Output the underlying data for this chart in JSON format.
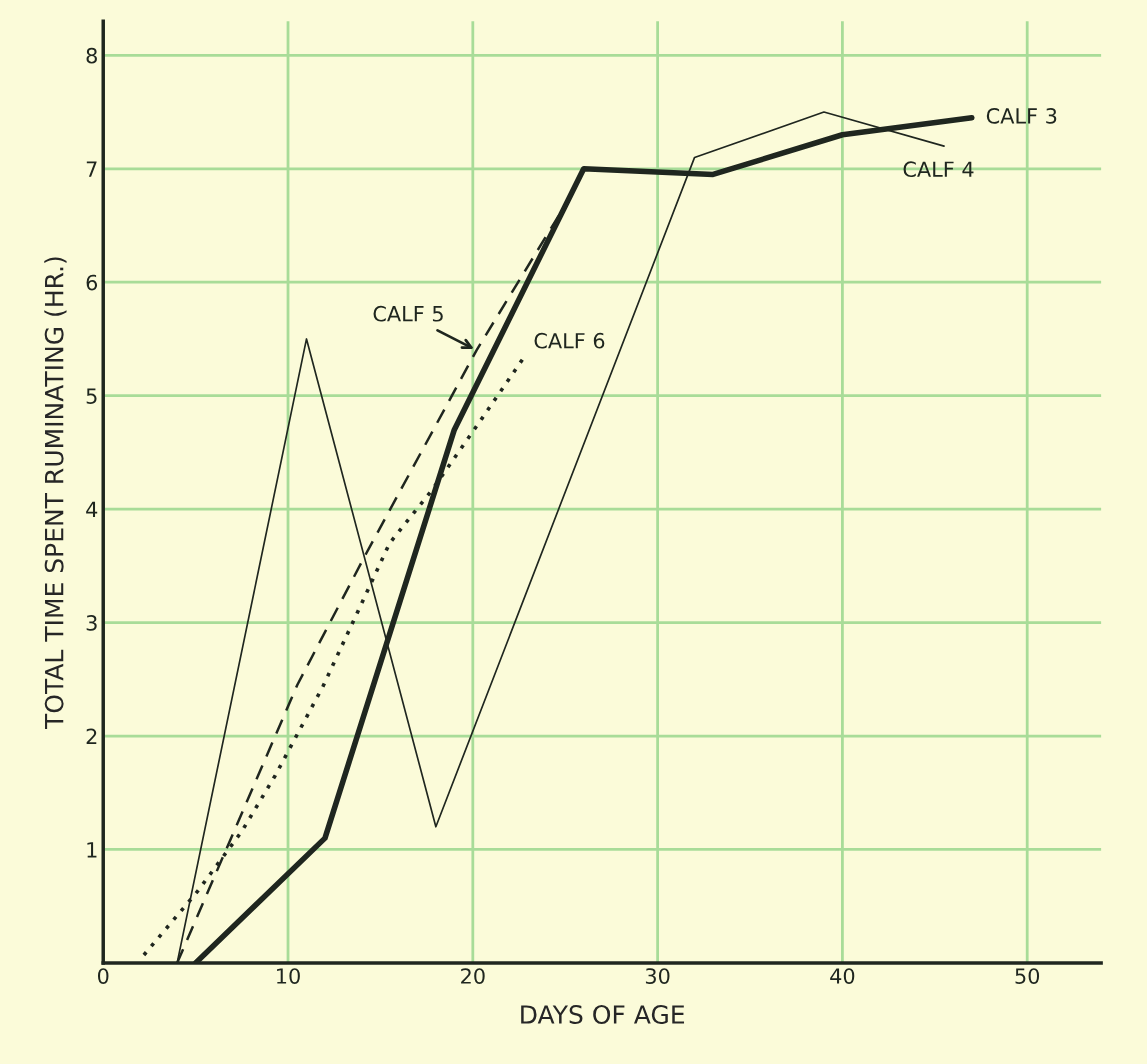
{
  "chart_data": {
    "type": "line",
    "xlabel": "DAYS OF AGE",
    "ylabel": "TOTAL TIME SPENT RUMINATING (HR.)",
    "xlim": [
      0,
      54
    ],
    "xticks": [
      0,
      10,
      20,
      30,
      40,
      50
    ],
    "ylim": [
      0,
      8.3
    ],
    "yticks": [
      1,
      2,
      3,
      4,
      5,
      6,
      7,
      8
    ],
    "grid": true,
    "legend": false,
    "marker": "none",
    "series": [
      {
        "name": "CALF 3",
        "color": "#1f261f",
        "line_style": "solid",
        "x": [
          5,
          12,
          19,
          26,
          33,
          40,
          47
        ],
        "values": [
          0,
          1.1,
          4.7,
          7.0,
          6.95,
          7.3,
          7.45
        ]
      },
      {
        "name": "CALF 4",
        "color": "#1f261f",
        "line_style": "solid",
        "x": [
          4,
          11,
          18,
          32,
          39,
          45.5
        ],
        "values": [
          0,
          5.5,
          1.2,
          7.1,
          7.5,
          7.2
        ]
      },
      {
        "name": "CALF 5",
        "color": "#1f261f",
        "line_style": "dashed",
        "x": [
          4,
          10.5,
          14.2,
          20.2,
          24.7
        ],
        "values": [
          0,
          2.45,
          3.6,
          5.4,
          6.6
        ]
      },
      {
        "name": "CALF 6",
        "color": "#1f261f",
        "line_style": "dotted",
        "x": [
          2.2,
          5.1,
          7.5,
          9.3,
          11.9,
          15.5,
          17.8,
          20.5,
          22.9
        ],
        "values": [
          0.07,
          0.63,
          1.16,
          1.65,
          2.44,
          3.7,
          4.17,
          4.8,
          5.37
        ]
      }
    ]
  }
}
